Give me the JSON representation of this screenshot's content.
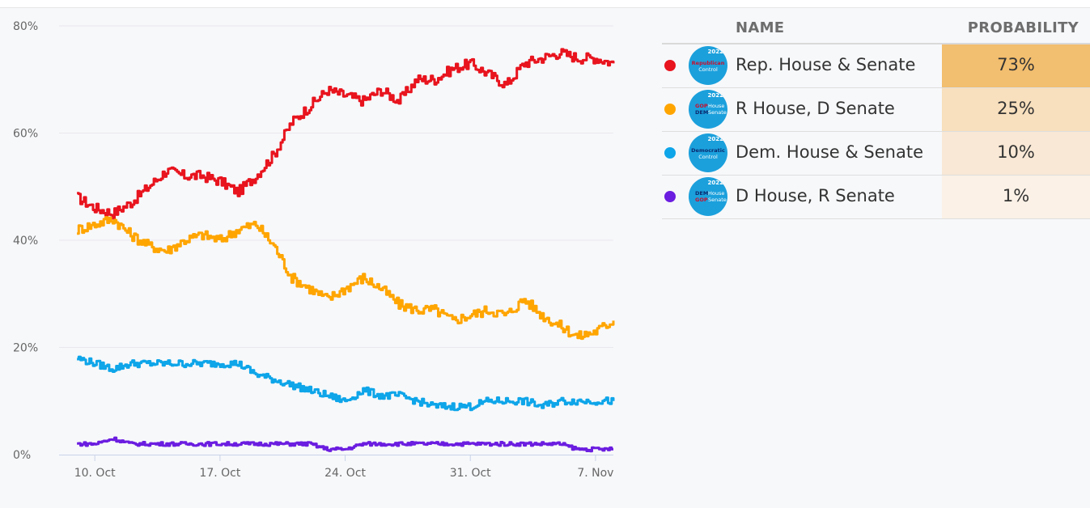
{
  "chart_data": {
    "type": "line",
    "title": "",
    "xlabel": "",
    "ylabel": "",
    "x_axis": {
      "range": [
        "Oct 8",
        "Nov 8"
      ],
      "ticks": [
        {
          "label": "10. Oct",
          "date": "Oct 10"
        },
        {
          "label": "17. Oct",
          "date": "Oct 17"
        },
        {
          "label": "24. Oct",
          "date": "Oct 24"
        },
        {
          "label": "31. Oct",
          "date": "Oct 31"
        },
        {
          "label": "7. Nov",
          "date": "Nov 7"
        }
      ]
    },
    "y_axis": {
      "ylim": [
        0,
        80
      ],
      "ticks": [
        {
          "label": "0%",
          "value": 0
        },
        {
          "label": "20%",
          "value": 20
        },
        {
          "label": "40%",
          "value": 40
        },
        {
          "label": "60%",
          "value": 60
        },
        {
          "label": "80%",
          "value": 80
        }
      ],
      "grid": true
    },
    "x": [
      "Oct 9",
      "Oct 10",
      "Oct 11",
      "Oct 12",
      "Oct 13",
      "Oct 14",
      "Oct 15",
      "Oct 16",
      "Oct 17",
      "Oct 18",
      "Oct 19",
      "Oct 20",
      "Oct 21",
      "Oct 22",
      "Oct 23",
      "Oct 24",
      "Oct 25",
      "Oct 26",
      "Oct 27",
      "Oct 28",
      "Oct 29",
      "Oct 30",
      "Oct 31",
      "Nov 1",
      "Nov 2",
      "Nov 3",
      "Nov 4",
      "Nov 5",
      "Nov 6",
      "Nov 7",
      "Nov 8"
    ],
    "series": [
      {
        "name": "Rep. House & Senate",
        "color": "#e8141e",
        "values": [
          48,
          46,
          45,
          47,
          50,
          53,
          52,
          52,
          51,
          49,
          52,
          56,
          62,
          65,
          68,
          67,
          66,
          68,
          66,
          70,
          70,
          72,
          73,
          71,
          69,
          73,
          74,
          75,
          74,
          74,
          73
        ]
      },
      {
        "name": "R House, D Senate",
        "color": "#ffa500",
        "values": [
          42,
          43,
          44,
          41,
          39,
          38,
          40,
          41,
          40,
          42,
          43,
          39,
          33,
          31,
          29,
          31,
          33,
          31,
          28,
          27,
          27,
          25,
          26,
          27,
          26,
          29,
          26,
          24,
          22,
          23,
          25
        ]
      },
      {
        "name": "Dem. House & Senate",
        "color": "#0ea5e9",
        "values": [
          18,
          17,
          16,
          17,
          17,
          17,
          17,
          17,
          17,
          17,
          15,
          14,
          13,
          12,
          11,
          10,
          12,
          11,
          11,
          10,
          9,
          9,
          9,
          10,
          10,
          10,
          9,
          10,
          10,
          10,
          10
        ]
      },
      {
        "name": "D House, R Senate",
        "color": "#6b1de0",
        "values": [
          2,
          2,
          3,
          2,
          2,
          2,
          2,
          2,
          2,
          2,
          2,
          2,
          2,
          2,
          1,
          1,
          2,
          2,
          2,
          2,
          2,
          2,
          2,
          2,
          2,
          2,
          2,
          2,
          1,
          1,
          1
        ]
      }
    ]
  },
  "table": {
    "col_name": "NAME",
    "col_prob": "PROBABILITY",
    "rows": [
      {
        "name": "Rep. House & Senate",
        "prob": "73%",
        "dot_color": "#e8141e",
        "cell_color": "#f2be6f",
        "logo": {
          "icon": "republican-control-logo",
          "year": "2022",
          "line1": "Republican",
          "line2": "Control"
        }
      },
      {
        "name": "R House, D Senate",
        "prob": "25%",
        "dot_color": "#ffa500",
        "cell_color": "#f8dfbd",
        "logo": {
          "icon": "gop-house-dem-senate-logo",
          "year": "2022",
          "a1": "GOP",
          "a2": "DEM",
          "b1": "House",
          "b2": "Senate"
        }
      },
      {
        "name": "Dem. House & Senate",
        "prob": "10%",
        "dot_color": "#0ea5e9",
        "cell_color": "#f8e8d5",
        "logo": {
          "icon": "democratic-control-logo",
          "year": "2022",
          "line1": "Democratic",
          "line2": "Control"
        }
      },
      {
        "name": "D House, R Senate",
        "prob": "1%",
        "dot_color": "#6b1de0",
        "cell_color": "#fbf1e6",
        "logo": {
          "icon": "dem-house-gop-senate-logo",
          "year": "2022",
          "a1": "DEM",
          "a2": "GOP",
          "b1": "House",
          "b2": "Senate"
        }
      }
    ]
  }
}
